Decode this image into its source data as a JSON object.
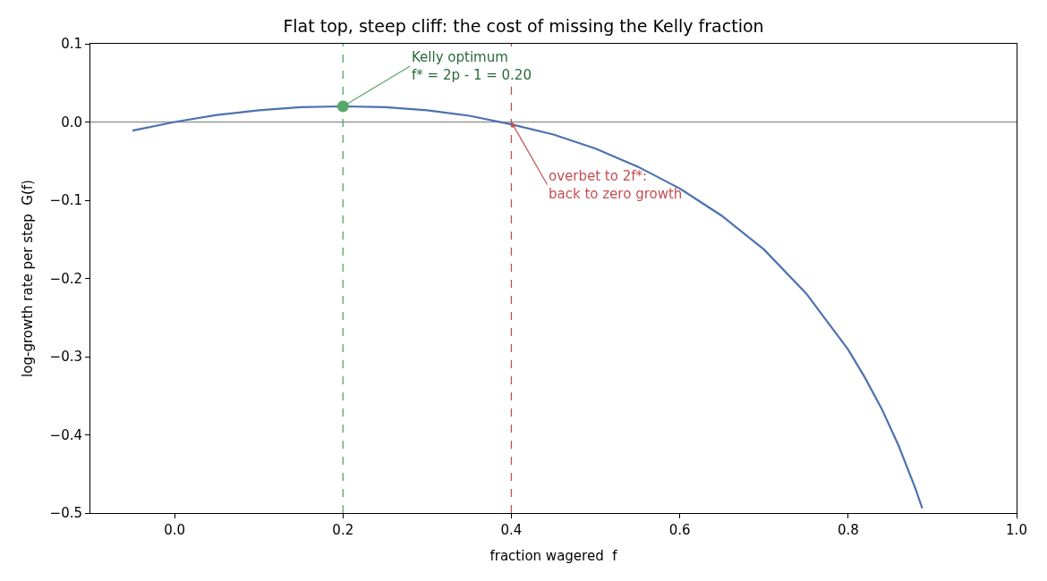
{
  "chart_data": {
    "type": "line",
    "title": "Flat top, steep cliff: the cost of missing the Kelly fraction",
    "xlabel": "fraction wagered  f",
    "ylabel": "log-growth rate per step  G(f)",
    "xlim": [
      -0.1,
      1.0
    ],
    "xticks": [
      {
        "value": 0,
        "label": "0.0"
      },
      0.2,
      0.4,
      0.6,
      0.8,
      {
        "value": 1,
        "label": "1.0"
      }
    ],
    "ylim": [
      -0.5,
      0.1
    ],
    "yticks": [
      {
        "value": -0.5,
        "label": "−0.5"
      },
      {
        "value": -0.4,
        "label": "−0.4"
      },
      {
        "value": -0.3,
        "label": "−0.3"
      },
      {
        "value": -0.2,
        "label": "−0.2"
      },
      {
        "value": -0.1,
        "label": "−0.1"
      },
      {
        "value": 0,
        "label": "0.0"
      },
      0.1
    ],
    "grid": false,
    "series": [
      {
        "color": "#4c72b0",
        "marker": "none",
        "line_style": "solid",
        "x": [
          -0.05,
          0,
          0.05,
          0.1,
          0.15,
          0.2,
          0.25,
          0.3,
          0.35,
          0.4,
          0.45,
          0.5,
          0.55,
          0.6,
          0.65,
          0.7,
          0.75,
          0.8,
          0.82,
          0.84,
          0.86,
          0.88,
          0.888
        ],
        "values": [
          -0.011,
          0,
          0.009,
          0.015,
          0.019,
          0.02,
          0.019,
          0.015,
          0.008,
          -0.003,
          -0.016,
          -0.034,
          -0.057,
          -0.085,
          -0.12,
          -0.163,
          -0.219,
          -0.291,
          -0.327,
          -0.367,
          -0.414,
          -0.469,
          -0.494
        ]
      },
      {
        "type": "scatter",
        "color": "#55a868",
        "marker": "circle",
        "x": [
          0.2
        ],
        "values": [
          0.02
        ]
      }
    ],
    "ref_lines": [
      {
        "axis": "y",
        "value": 0,
        "color": "#999999",
        "line_style": "solid"
      },
      {
        "axis": "x",
        "value": 0.2,
        "color": "#55a868",
        "line_style": "dashed"
      },
      {
        "axis": "x",
        "value": 0.4,
        "color": "#c44e52",
        "line_style": "dashed"
      }
    ],
    "annotations": [
      {
        "text": "Kelly optimum\nf* = 2p - 1 = 0.20",
        "x": 0.2,
        "y": 0.02
      },
      {
        "text": "overbet to 2f*:\nback to zero growth",
        "x": 0.4,
        "y": 0.0
      }
    ]
  }
}
